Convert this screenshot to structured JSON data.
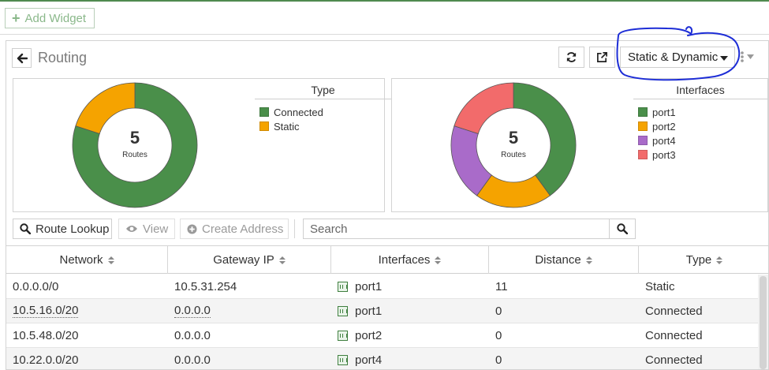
{
  "top_bar": {
    "add_widget_label": "Add Widget"
  },
  "widget": {
    "title": "Routing",
    "filter_value": "Static & Dynamic",
    "type_chart": {
      "legend_title": "Type",
      "center_value": "5",
      "center_label": "Routes",
      "legend": [
        {
          "label": "Connected",
          "color": "#4a8f4a"
        },
        {
          "label": "Static",
          "color": "#f5a300"
        }
      ]
    },
    "interfaces_chart": {
      "legend_title": "Interfaces",
      "center_value": "5",
      "center_label": "Routes",
      "legend": [
        {
          "label": "port1",
          "color": "#4a8f4a"
        },
        {
          "label": "port2",
          "color": "#f5a300"
        },
        {
          "label": "port4",
          "color": "#a96bc9"
        },
        {
          "label": "port3",
          "color": "#f26b6b"
        }
      ]
    },
    "toolbar": {
      "route_lookup": "Route Lookup",
      "view": "View",
      "create_address": "Create Address",
      "search_placeholder": "Search"
    },
    "table": {
      "columns": [
        "Network",
        "Gateway IP",
        "Interfaces",
        "Distance",
        "Type"
      ],
      "rows": [
        {
          "network": "0.0.0.0/0",
          "gateway": "10.5.31.254",
          "interface": "port1",
          "distance": "11",
          "type": "Static"
        },
        {
          "network": "10.5.16.0/20",
          "gateway": "0.0.0.0",
          "interface": "port1",
          "distance": "0",
          "type": "Connected"
        },
        {
          "network": "10.5.48.0/20",
          "gateway": "0.0.0.0",
          "interface": "port2",
          "distance": "0",
          "type": "Connected"
        },
        {
          "network": "10.22.0.0/20",
          "gateway": "0.0.0.0",
          "interface": "port4",
          "distance": "0",
          "type": "Connected"
        }
      ]
    }
  },
  "chart_data": [
    {
      "type": "pie",
      "title": "Type",
      "categories": [
        "Connected",
        "Static"
      ],
      "values": [
        4,
        1
      ],
      "colors": [
        "#4a8f4a",
        "#f5a300"
      ],
      "legend_position": "right"
    },
    {
      "type": "pie",
      "title": "Interfaces",
      "categories": [
        "port1",
        "port2",
        "port4",
        "port3"
      ],
      "values": [
        2,
        1,
        1,
        1
      ],
      "colors": [
        "#4a8f4a",
        "#f5a300",
        "#a96bc9",
        "#f26b6b"
      ],
      "legend_position": "right"
    }
  ]
}
